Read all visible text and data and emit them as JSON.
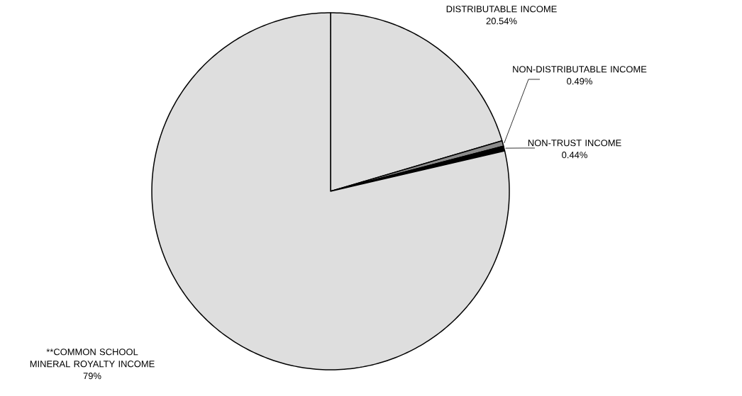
{
  "chart_data": {
    "type": "pie",
    "categories": [
      "DISTRIBUTABLE INCOME",
      "NON-DISTRIBUTABLE INCOME",
      "NON-TRUST INCOME",
      "**COMMON SCHOOL MINERAL ROYALTY INCOME"
    ],
    "values": [
      20.54,
      0.49,
      0.44,
      79
    ],
    "value_labels": [
      "20.54%",
      "0.49%",
      "0.44%",
      "79%"
    ],
    "colors": [
      "#dedede",
      "#8c8c8c",
      "#000000",
      "#dedede"
    ]
  }
}
